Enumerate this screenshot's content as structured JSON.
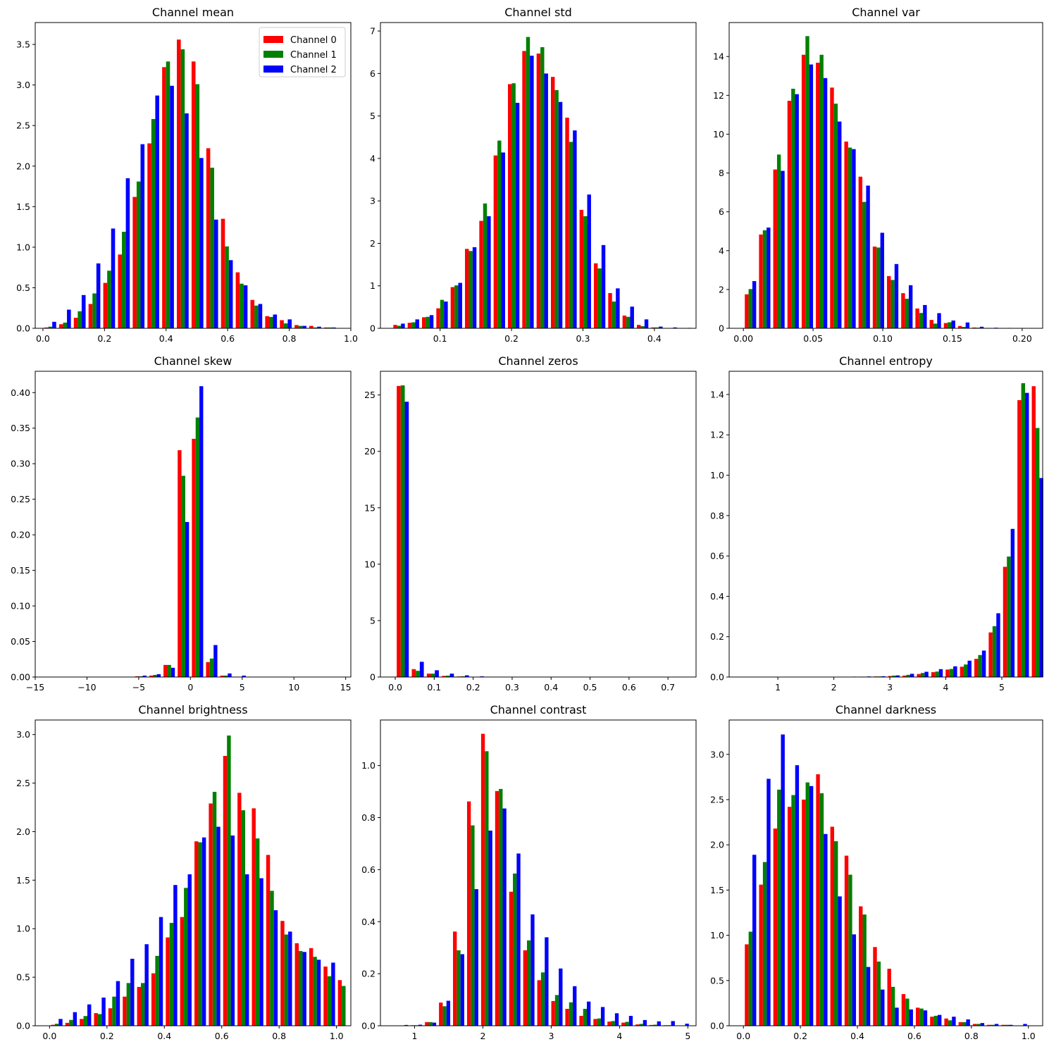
{
  "colors": {
    "channel_0": "#ff0000",
    "channel_1": "#008000",
    "channel_2": "#0000ff"
  },
  "legend": {
    "placement": "top-right",
    "entries": [
      "Channel 0",
      "Channel 1",
      "Channel 2"
    ]
  },
  "chart_data": [
    {
      "type": "bar",
      "title": "Channel mean",
      "xlabel": "",
      "ylabel": "",
      "xlim": [
        -0.025,
        1.0
      ],
      "ylim": [
        0,
        3.77
      ],
      "xticks": [
        0.0,
        0.2,
        0.4,
        0.6,
        0.8,
        1.0
      ],
      "xtick_labels": [
        "0.0",
        "0.2",
        "0.4",
        "0.6",
        "0.8",
        "1.0"
      ],
      "yticks": [
        0,
        0.5,
        1.0,
        1.5,
        2.0,
        2.5,
        3.0,
        3.5
      ],
      "ytick_labels": [
        "0.0",
        "0.5",
        "1.0",
        "1.5",
        "2.0",
        "2.5",
        "3.0",
        "3.5"
      ],
      "bin_start": 0.0,
      "bin_width": 0.0478,
      "legend": true,
      "series": [
        {
          "name": "Channel 0",
          "values": [
            0.01,
            0.05,
            0.13,
            0.3,
            0.56,
            0.91,
            1.62,
            2.28,
            3.22,
            3.56,
            3.29,
            2.22,
            1.35,
            0.69,
            0.35,
            0.15,
            0.1,
            0.04,
            0.03,
            0.01
          ]
        },
        {
          "name": "Channel 1",
          "values": [
            0.02,
            0.07,
            0.21,
            0.43,
            0.71,
            1.19,
            1.81,
            2.58,
            3.29,
            3.44,
            3.01,
            1.98,
            1.01,
            0.55,
            0.28,
            0.14,
            0.06,
            0.03,
            0.01,
            0.01
          ]
        },
        {
          "name": "Channel 2",
          "values": [
            0.08,
            0.23,
            0.41,
            0.8,
            1.23,
            1.85,
            2.27,
            2.87,
            2.99,
            2.65,
            2.1,
            1.34,
            0.84,
            0.53,
            0.3,
            0.17,
            0.11,
            0.03,
            0.02,
            0.01
          ]
        }
      ]
    },
    {
      "type": "bar",
      "title": "Channel std",
      "xlabel": "",
      "ylabel": "",
      "xlim": [
        0.0165,
        0.4583
      ],
      "ylim": [
        0,
        7.2
      ],
      "xticks": [
        0.1,
        0.2,
        0.3,
        0.4
      ],
      "xtick_labels": [
        "0.1",
        "0.2",
        "0.3",
        "0.4"
      ],
      "yticks": [
        0,
        1,
        2,
        3,
        4,
        5,
        6,
        7
      ],
      "ytick_labels": [
        "0",
        "1",
        "2",
        "3",
        "4",
        "5",
        "6",
        "7"
      ],
      "bin_start": 0.0326,
      "bin_width": 0.02005,
      "legend": false,
      "series": [
        {
          "name": "Channel 0",
          "values": [
            0.08,
            0.13,
            0.26,
            0.47,
            0.97,
            1.87,
            2.53,
            4.07,
            5.75,
            6.53,
            6.47,
            5.92,
            4.96,
            2.79,
            1.53,
            0.83,
            0.3,
            0.08,
            0.02,
            0.0,
            0.0
          ]
        },
        {
          "name": "Channel 1",
          "values": [
            0.06,
            0.14,
            0.27,
            0.67,
            1.01,
            1.82,
            2.94,
            4.42,
            5.77,
            6.86,
            6.62,
            5.61,
            4.39,
            2.64,
            1.41,
            0.63,
            0.27,
            0.05,
            0.02,
            0.0,
            0.0
          ]
        },
        {
          "name": "Channel 2",
          "values": [
            0.11,
            0.21,
            0.31,
            0.63,
            1.07,
            1.91,
            2.64,
            4.14,
            5.31,
            6.42,
            6.0,
            5.33,
            4.66,
            3.15,
            1.96,
            0.94,
            0.51,
            0.21,
            0.04,
            0.02,
            0.01
          ]
        }
      ]
    },
    {
      "type": "bar",
      "title": "Channel var",
      "xlabel": "",
      "ylabel": "",
      "xlim": [
        -0.0102,
        0.2147
      ],
      "ylim": [
        0,
        15.75
      ],
      "xticks": [
        0.0,
        0.05,
        0.1,
        0.15,
        0.2
      ],
      "xtick_labels": [
        "0.00",
        "0.05",
        "0.10",
        "0.15",
        "0.20"
      ],
      "yticks": [
        0,
        2,
        4,
        6,
        8,
        10,
        12,
        14
      ],
      "ytick_labels": [
        "0",
        "2",
        "4",
        "6",
        "8",
        "10",
        "12",
        "14"
      ],
      "bin_start": 0.0,
      "bin_width": 0.0102,
      "legend": false,
      "series": [
        {
          "name": "Channel 0",
          "values": [
            1.75,
            4.83,
            8.18,
            11.72,
            14.09,
            13.68,
            12.4,
            9.62,
            7.81,
            4.21,
            2.69,
            1.81,
            1.02,
            0.43,
            0.27,
            0.12,
            0.04,
            0.02,
            0.01,
            0.0
          ]
        },
        {
          "name": "Channel 1",
          "values": [
            2.02,
            5.05,
            8.95,
            12.34,
            15.05,
            14.09,
            11.57,
            9.31,
            6.51,
            4.16,
            2.49,
            1.52,
            0.79,
            0.24,
            0.31,
            0.07,
            0.03,
            0.01,
            0.0,
            0.0
          ]
        },
        {
          "name": "Channel 2",
          "values": [
            2.43,
            5.19,
            8.11,
            12.06,
            13.59,
            12.89,
            10.65,
            9.23,
            7.35,
            4.92,
            3.31,
            2.22,
            1.2,
            0.78,
            0.4,
            0.3,
            0.08,
            0.03,
            0.02,
            0.01
          ]
        }
      ]
    },
    {
      "type": "bar",
      "title": "Channel skew",
      "xlabel": "",
      "ylabel": "",
      "xlim": [
        -15.0,
        15.5
      ],
      "ylim": [
        0,
        0.43
      ],
      "xticks": [
        -15,
        -10,
        -5,
        0,
        5,
        10,
        15
      ],
      "xtick_labels": [
        "−15",
        "−10",
        "−5",
        "0",
        "5",
        "10",
        "15"
      ],
      "yticks": [
        0,
        0.05,
        0.1,
        0.15,
        0.2,
        0.25,
        0.3,
        0.35,
        0.4
      ],
      "ytick_labels": [
        "0.00",
        "0.05",
        "0.10",
        "0.15",
        "0.20",
        "0.25",
        "0.30",
        "0.35",
        "0.40"
      ],
      "bin_start": -13.7,
      "bin_width": 1.37,
      "legend": false,
      "series": [
        {
          "name": "Channel 0",
          "values": [
            0.0,
            0.0,
            0.0,
            0.0,
            0.0,
            0.0,
            0.001,
            0.002,
            0.017,
            0.319,
            0.335,
            0.021,
            0.002,
            0.0,
            0.0,
            0.0,
            0.0,
            0.0,
            0.0,
            0.0
          ]
        },
        {
          "name": "Channel 1",
          "values": [
            0.0,
            0.0,
            0.0,
            0.0,
            0.0,
            0.0,
            0.001,
            0.003,
            0.017,
            0.283,
            0.365,
            0.026,
            0.002,
            0.0,
            0.0,
            0.0,
            0.0,
            0.0,
            0.0,
            0.0
          ]
        },
        {
          "name": "Channel 2",
          "values": [
            0.0,
            0.0,
            0.0,
            0.0,
            0.0,
            0.0,
            0.002,
            0.004,
            0.013,
            0.218,
            0.409,
            0.045,
            0.005,
            0.002,
            0.0,
            0.0,
            0.0,
            0.0,
            0.0,
            0.0
          ]
        }
      ]
    },
    {
      "type": "bar",
      "title": "Channel zeros",
      "xlabel": "",
      "ylabel": "",
      "xlim": [
        -0.038,
        0.772
      ],
      "ylim": [
        0,
        27.1
      ],
      "xticks": [
        0.0,
        0.1,
        0.2,
        0.3,
        0.4,
        0.5,
        0.6,
        0.7
      ],
      "xtick_labels": [
        "0.0",
        "0.1",
        "0.2",
        "0.3",
        "0.4",
        "0.5",
        "0.6",
        "0.7"
      ],
      "yticks": [
        0,
        5,
        10,
        15,
        20,
        25
      ],
      "ytick_labels": [
        "0",
        "5",
        "10",
        "15",
        "20",
        "25"
      ],
      "bin_start": 0.0,
      "bin_width": 0.0386,
      "legend": false,
      "series": [
        {
          "name": "Channel 0",
          "values": [
            25.8,
            0.7,
            0.3,
            0.1,
            0.05,
            0.02,
            0.01,
            0,
            0,
            0,
            0,
            0,
            0,
            0,
            0,
            0,
            0,
            0,
            0,
            0
          ]
        },
        {
          "name": "Channel 1",
          "values": [
            25.85,
            0.55,
            0.3,
            0.12,
            0.06,
            0.03,
            0.01,
            0,
            0,
            0,
            0,
            0,
            0,
            0,
            0,
            0,
            0,
            0,
            0,
            0
          ]
        },
        {
          "name": "Channel 2",
          "values": [
            24.4,
            1.35,
            0.6,
            0.3,
            0.15,
            0.06,
            0.02,
            0,
            0,
            0,
            0,
            0,
            0,
            0,
            0,
            0,
            0,
            0,
            0,
            0
          ]
        }
      ]
    },
    {
      "type": "bar",
      "title": "Channel entropy",
      "xlabel": "",
      "ylabel": "",
      "xlim": [
        0.13,
        5.73
      ],
      "ylim": [
        0,
        1.515
      ],
      "xticks": [
        1,
        2,
        3,
        4,
        5
      ],
      "xtick_labels": [
        "1",
        "2",
        "3",
        "4",
        "5"
      ],
      "yticks": [
        0,
        0.2,
        0.4,
        0.6,
        0.8,
        1.0,
        1.2,
        1.4
      ],
      "ytick_labels": [
        "0.0",
        "0.2",
        "0.4",
        "0.6",
        "0.8",
        "1.0",
        "1.2",
        "1.4"
      ],
      "bin_start": 0.38,
      "bin_width": 0.2565,
      "legend": false,
      "series": [
        {
          "name": "Channel 0",
          "values": [
            0.0,
            0.0,
            0.0,
            0.0,
            0.0,
            0.0,
            0.0,
            0.0,
            0.002,
            0.003,
            0.005,
            0.007,
            0.015,
            0.024,
            0.037,
            0.051,
            0.09,
            0.221,
            0.546,
            1.372,
            1.441
          ]
        },
        {
          "name": "Channel 1",
          "values": [
            0.0,
            0.0,
            0.0,
            0.0,
            0.0,
            0.0,
            0.0,
            0.0,
            0.002,
            0.003,
            0.007,
            0.011,
            0.02,
            0.027,
            0.04,
            0.062,
            0.109,
            0.252,
            0.597,
            1.456,
            1.234
          ]
        },
        {
          "name": "Channel 2",
          "values": [
            0.0,
            0.0,
            0.0,
            0.0,
            0.0,
            0.0,
            0.0,
            0.002,
            0.003,
            0.004,
            0.008,
            0.016,
            0.026,
            0.039,
            0.053,
            0.081,
            0.131,
            0.316,
            0.734,
            1.408,
            0.986
          ]
        }
      ]
    },
    {
      "type": "bar",
      "title": "Channel brightness",
      "xlabel": "",
      "ylabel": "",
      "xlim": [
        -0.05,
        1.05
      ],
      "ylim": [
        0,
        3.15
      ],
      "xticks": [
        0.0,
        0.2,
        0.4,
        0.6,
        0.8,
        1.0
      ],
      "xtick_labels": [
        "0.0",
        "0.2",
        "0.4",
        "0.6",
        "0.8",
        "1.0"
      ],
      "yticks": [
        0,
        0.5,
        1.0,
        1.5,
        2.0,
        2.5,
        3.0
      ],
      "ytick_labels": [
        "0.0",
        "0.5",
        "1.0",
        "1.5",
        "2.0",
        "2.5",
        "3.0"
      ],
      "bin_start": 0.0,
      "bin_width": 0.05,
      "legend": false,
      "series": [
        {
          "name": "Channel 0",
          "values": [
            0.01,
            0.03,
            0.07,
            0.13,
            0.18,
            0.3,
            0.4,
            0.54,
            0.91,
            1.12,
            1.9,
            2.29,
            2.78,
            2.4,
            2.24,
            1.76,
            1.08,
            0.85,
            0.8,
            0.61,
            0.47
          ]
        },
        {
          "name": "Channel 1",
          "values": [
            0.02,
            0.06,
            0.1,
            0.12,
            0.3,
            0.44,
            0.44,
            0.72,
            1.06,
            1.42,
            1.89,
            2.41,
            2.99,
            2.22,
            1.93,
            1.39,
            0.94,
            0.77,
            0.71,
            0.51,
            0.41
          ]
        },
        {
          "name": "Channel 2",
          "values": [
            0.07,
            0.14,
            0.22,
            0.29,
            0.46,
            0.69,
            0.84,
            1.12,
            1.45,
            1.56,
            1.94,
            2.05,
            1.96,
            1.56,
            1.52,
            1.19,
            0.97,
            0.76,
            0.68,
            0.65,
            0.0
          ]
        }
      ]
    },
    {
      "type": "bar",
      "title": "Channel contrast",
      "xlabel": "",
      "ylabel": "",
      "xlim": [
        0.5,
        5.12
      ],
      "ylim": [
        0,
        1.175
      ],
      "xticks": [
        1,
        2,
        3,
        4,
        5
      ],
      "xtick_labels": [
        "1",
        "2",
        "3",
        "4",
        "5"
      ],
      "yticks": [
        0,
        0.2,
        0.4,
        0.6,
        0.8,
        1.0
      ],
      "ytick_labels": [
        "0.0",
        "0.2",
        "0.4",
        "0.6",
        "0.8",
        "1.0"
      ],
      "bin_start": 0.72,
      "bin_width": 0.2055,
      "legend": false,
      "series": [
        {
          "name": "Channel 0",
          "values": [
            0.0,
            0.002,
            0.014,
            0.089,
            0.362,
            0.862,
            1.122,
            0.902,
            0.515,
            0.29,
            0.175,
            0.095,
            0.065,
            0.038,
            0.026,
            0.016,
            0.012,
            0.005,
            0.003,
            0.002,
            0.001
          ]
        },
        {
          "name": "Channel 1",
          "values": [
            0.0,
            0.002,
            0.014,
            0.075,
            0.29,
            0.77,
            1.055,
            0.91,
            0.585,
            0.328,
            0.205,
            0.118,
            0.09,
            0.065,
            0.028,
            0.018,
            0.015,
            0.007,
            0.004,
            0.002,
            0.001
          ]
        },
        {
          "name": "Channel 2",
          "values": [
            0.003,
            0.004,
            0.012,
            0.096,
            0.275,
            0.525,
            0.75,
            0.835,
            0.662,
            0.428,
            0.34,
            0.22,
            0.152,
            0.093,
            0.072,
            0.048,
            0.038,
            0.022,
            0.017,
            0.018,
            0.008
          ]
        }
      ]
    },
    {
      "type": "bar",
      "title": "Channel darkness",
      "xlabel": "",
      "ylabel": "",
      "xlim": [
        -0.05,
        1.05
      ],
      "ylim": [
        0,
        3.38
      ],
      "xticks": [
        0.0,
        0.2,
        0.4,
        0.6,
        0.8,
        1.0
      ],
      "xtick_labels": [
        "0.0",
        "0.2",
        "0.4",
        "0.6",
        "0.8",
        "1.0"
      ],
      "yticks": [
        0,
        0.5,
        1.0,
        1.5,
        2.0,
        2.5,
        3.0
      ],
      "ytick_labels": [
        "0.0",
        "0.5",
        "1.0",
        "1.5",
        "2.0",
        "2.5",
        "3.0"
      ],
      "bin_start": 0.0,
      "bin_width": 0.05,
      "legend": false,
      "series": [
        {
          "name": "Channel 0",
          "values": [
            0.9,
            1.56,
            2.18,
            2.42,
            2.5,
            2.78,
            2.2,
            1.88,
            1.32,
            0.87,
            0.63,
            0.35,
            0.2,
            0.1,
            0.08,
            0.04,
            0.02,
            0.01,
            0.01,
            0.0
          ]
        },
        {
          "name": "Channel 1",
          "values": [
            1.04,
            1.81,
            2.61,
            2.55,
            2.69,
            2.57,
            2.04,
            1.67,
            1.23,
            0.71,
            0.43,
            0.3,
            0.19,
            0.11,
            0.06,
            0.04,
            0.02,
            0.01,
            0.01,
            0.0
          ]
        },
        {
          "name": "Channel 2",
          "values": [
            1.89,
            2.73,
            3.22,
            2.88,
            2.65,
            2.12,
            1.43,
            1.01,
            0.65,
            0.4,
            0.2,
            0.18,
            0.17,
            0.12,
            0.1,
            0.07,
            0.03,
            0.02,
            0.01,
            0.02
          ]
        }
      ]
    }
  ]
}
